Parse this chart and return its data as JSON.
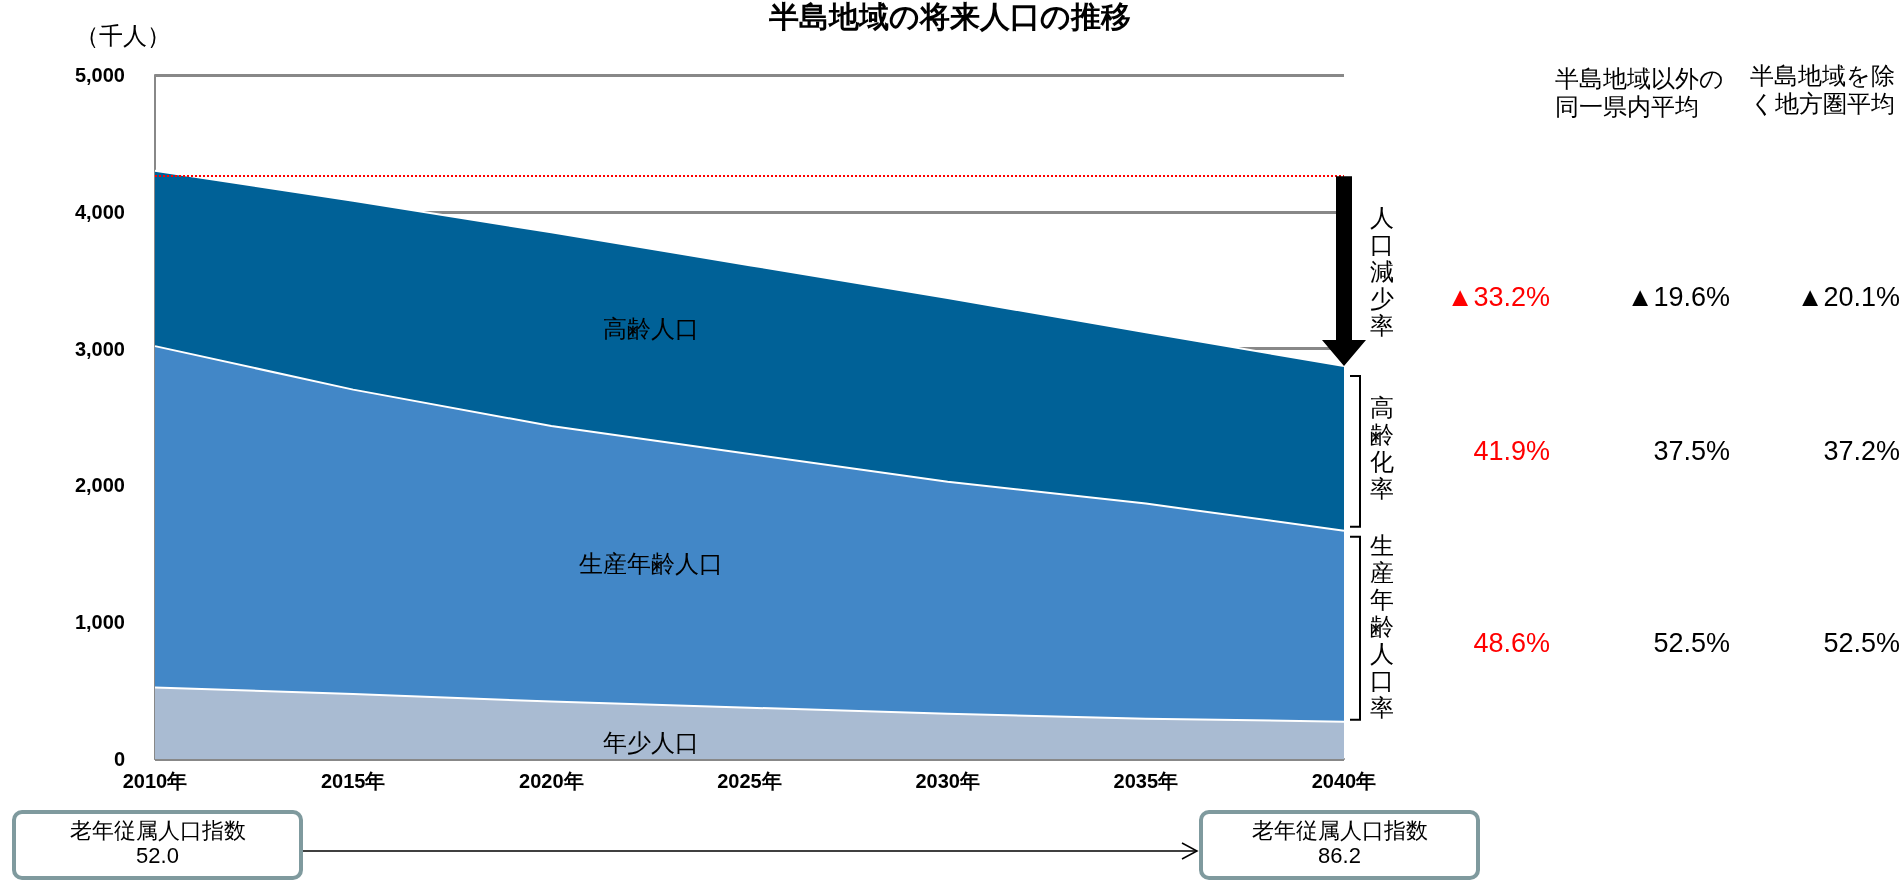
{
  "chart_data": {
    "type": "area",
    "title": "半島地域の将来人口の推移",
    "ylabel": "（千人）",
    "categories": [
      "2010年",
      "2015年",
      "2020年",
      "2025年",
      "2030年",
      "2035年",
      "2040年"
    ],
    "stacked": true,
    "series": [
      {
        "name": "年少人口",
        "color": "#a9bbd2",
        "values": [
          522,
          475,
          420,
          375,
          330,
          295,
          273
        ]
      },
      {
        "name": "生産年齢人口",
        "color": "#4287c7",
        "values": [
          2496,
          2225,
          2014,
          1855,
          1697,
          1572,
          1396
        ]
      },
      {
        "name": "高齢人口",
        "color": "#006197",
        "values": [
          1282,
          1380,
          1416,
          1380,
          1343,
          1253,
          1203
        ]
      }
    ],
    "ylim": [
      0,
      5000
    ],
    "yticks": [
      {
        "value": 0,
        "label": "0"
      },
      {
        "value": 1000,
        "label": "1,000"
      },
      {
        "value": 2000,
        "label": "2,000"
      },
      {
        "value": 3000,
        "label": "3,000"
      },
      {
        "value": 4000,
        "label": "4,000"
      },
      {
        "value": 5000,
        "label": "5,000"
      }
    ],
    "grid": "y",
    "legend": false,
    "ref_lines": [
      {
        "axis": "y",
        "value": 4260,
        "label": null,
        "color": "#ff0000",
        "line_style": "dotted"
      }
    ],
    "annotations": [
      {
        "text": "人口減少率",
        "x": "2040年",
        "y": 2872
      },
      {
        "text": "高齢化率",
        "x": "2040年",
        "y": 2270
      },
      {
        "text": "生産年齢人口率",
        "x": "2040年",
        "y": 970
      },
      "半島地域以外の同一県内平均",
      "半島地域を除く地方圏平均",
      "▲33.2%",
      "▲19.6%",
      "▲20.1%",
      "41.9%",
      "37.5%",
      "37.2%",
      "48.6%",
      "52.5%",
      "52.5%",
      "老年従属人口指数\n52.0",
      "老年従属人口指数\n86.2"
    ]
  }
}
